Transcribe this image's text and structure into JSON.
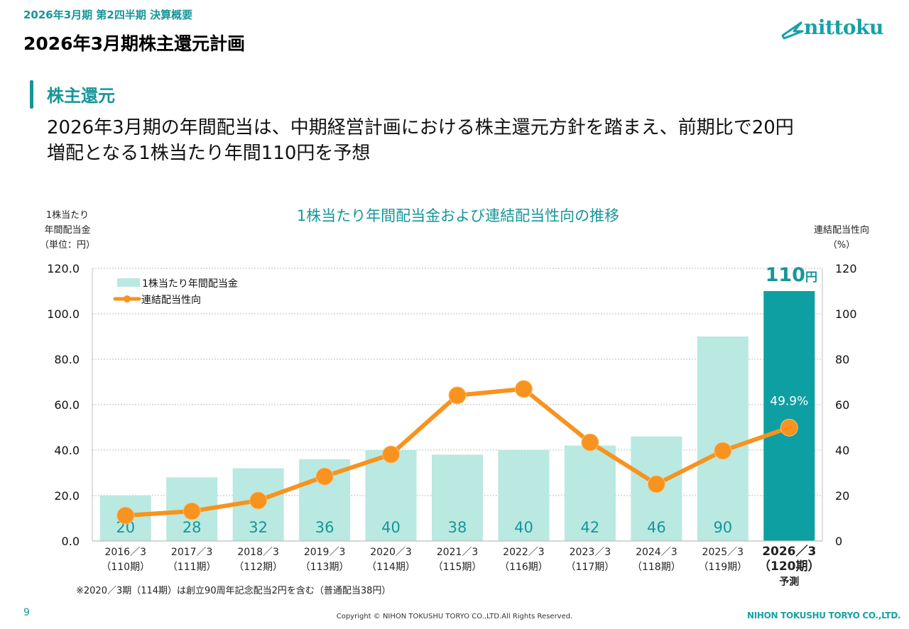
{
  "header": {
    "subtitle": "2026年3月期 第2四半期 決算概要",
    "title": "2026年3月期株主還元計画",
    "logo_text": "nittoku"
  },
  "section": {
    "title": "株主還元",
    "lead_line1": "2026年3月期の年間配当は、中期経営計画における株主還元方針を踏まえ、前期比で20円",
    "lead_line2": "増配となる1株当たり年間110円を予想"
  },
  "chart_data": {
    "type": "bar",
    "title": "1株当たり年間配当金および連結配当性向の推移",
    "ylabel_left": [
      "1株当たり",
      "年間配当金",
      "（単位：円）"
    ],
    "ylabel_right": [
      "連結配当性向",
      "（%）"
    ],
    "categories": [
      {
        "year": "2016／3",
        "period": "（110期）"
      },
      {
        "year": "2017／3",
        "period": "（111期）"
      },
      {
        "year": "2018／3",
        "period": "（112期）"
      },
      {
        "year": "2019／3",
        "period": "（113期）"
      },
      {
        "year": "2020／3",
        "period": "（114期）"
      },
      {
        "year": "2021／3",
        "period": "（115期）"
      },
      {
        "year": "2022／3",
        "period": "（116期）"
      },
      {
        "year": "2023／3",
        "period": "（117期）"
      },
      {
        "year": "2024／3",
        "period": "（118期）"
      },
      {
        "year": "2025／3",
        "period": "（119期）"
      },
      {
        "year": "2026／3",
        "period": "（120期）",
        "note": "予測"
      }
    ],
    "series": [
      {
        "name": "1株当たり年間配当金",
        "kind": "bar",
        "axis": "left",
        "color": "#b9e9e1",
        "highlight_color": "#0e9fa3",
        "values": [
          20,
          28,
          32,
          36,
          40,
          38,
          40,
          42,
          46,
          90,
          110
        ],
        "labels": [
          "20",
          "28",
          "32",
          "36",
          "40",
          "38",
          "40",
          "42",
          "46",
          "90",
          ""
        ]
      },
      {
        "name": "連結配当性向",
        "kind": "line",
        "axis": "right",
        "color": "#f7931e",
        "values": [
          11.2,
          13.1,
          17.8,
          28.4,
          38.1,
          64.1,
          66.9,
          43.4,
          25.0,
          39.7,
          49.9
        ]
      }
    ],
    "highlight_bar_label": "110",
    "highlight_bar_unit": "円",
    "highlight_line_label": "49.9%",
    "ylim_left": [
      0,
      120
    ],
    "ylim_right": [
      0,
      120
    ],
    "yticks_left": [
      "0.0",
      "20.0",
      "40.0",
      "60.0",
      "80.0",
      "100.0",
      "120.0"
    ],
    "yticks_right": [
      "0",
      "20",
      "40",
      "60",
      "80",
      "100",
      "120"
    ],
    "grid": true,
    "legend": "top-left"
  },
  "footer": {
    "footnote": "※2020／3期（114期）は創立90周年記念配当2円を含む（普通配当38円）",
    "page_number": "9",
    "copyright": "Copyright © NIHON TOKUSHU TORYO CO.,LTD.All Rights Reserved.",
    "company": "NIHON TOKUSHU TORYO CO.,LTD."
  }
}
